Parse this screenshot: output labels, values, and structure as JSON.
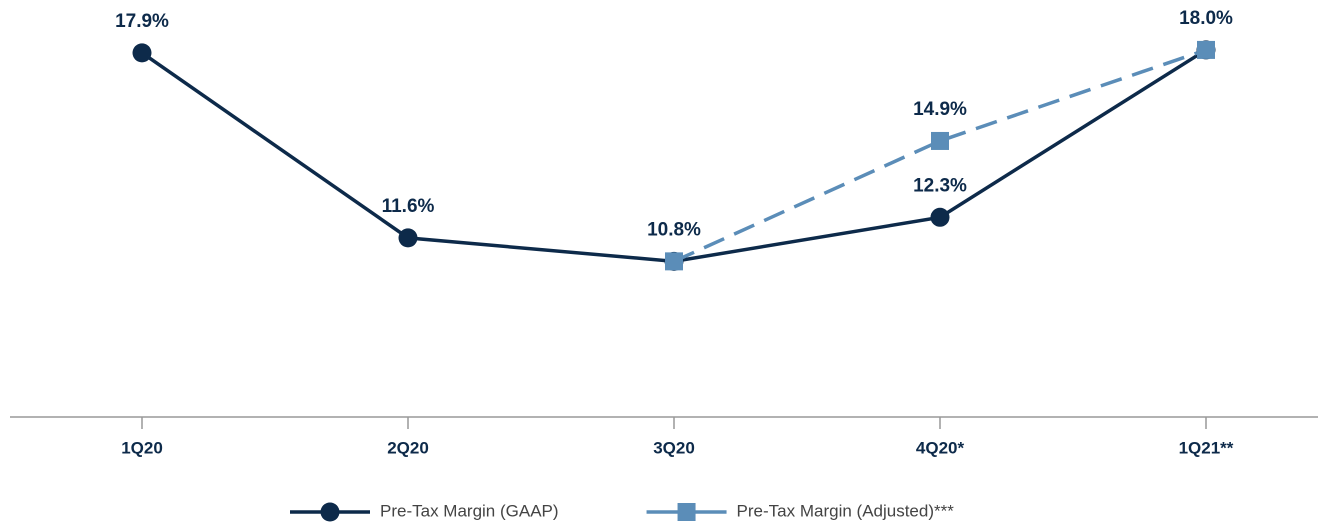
{
  "chart_data": {
    "type": "line",
    "categories": [
      "1Q20",
      "2Q20",
      "3Q20",
      "4Q20*",
      "1Q21**"
    ],
    "ylim": [
      5.5,
      19.7
    ],
    "series": [
      {
        "name": "Pre-Tax Margin (GAAP)",
        "color": "#0d2a4a",
        "marker": "circle",
        "dashed": false,
        "values": [
          17.9,
          11.6,
          10.8,
          12.3,
          18.0
        ],
        "value_labels": [
          "17.9%",
          "11.6%",
          "10.8%",
          "12.3%",
          null
        ]
      },
      {
        "name": "Pre-Tax Margin (Adjusted)***",
        "color": "#5b8db8",
        "marker": "square",
        "dashed": true,
        "values": [
          null,
          null,
          10.8,
          14.9,
          18.0
        ],
        "value_labels": [
          null,
          null,
          null,
          "14.9%",
          "18.0%"
        ]
      }
    ]
  }
}
